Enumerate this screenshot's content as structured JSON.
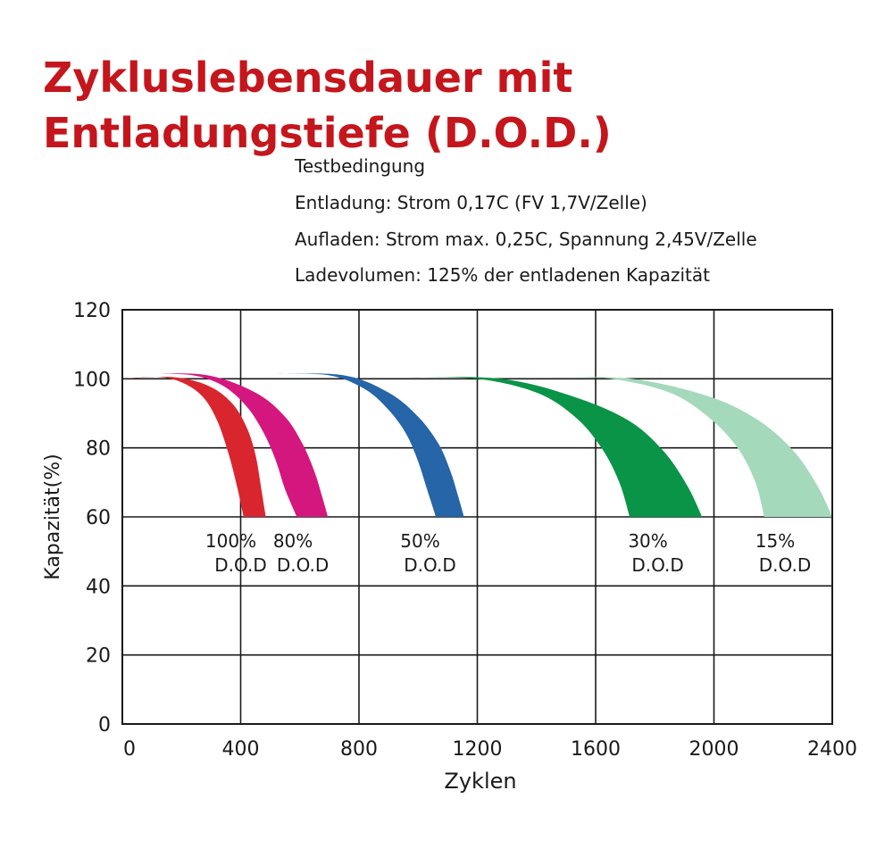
{
  "title": "Zykluslebensdauer mit Entladungstiefe (D.O.D.)",
  "conditions": [
    "Testbedingung",
    "Entladung: Strom 0,17C (FV 1,7V/Zelle)",
    "Aufladen: Strom max. 0,25C, Spannung 2,45V/Zelle",
    "Ladevolumen: 125% der entladenen Kapazität"
  ],
  "chart_data": {
    "type": "area",
    "xlabel": "Zyklen",
    "ylabel": "Kapazität(%)",
    "xlim": [
      0,
      2400
    ],
    "ylim": [
      0,
      120
    ],
    "xticks": [
      0,
      400,
      800,
      1200,
      1600,
      2000,
      2400
    ],
    "yticks": [
      0,
      20,
      40,
      60,
      80,
      100,
      120
    ],
    "grid": true,
    "series": [
      {
        "label_line1": "100%",
        "label_line2": "D.O.D",
        "label_x": 400,
        "label_y": 54,
        "color": "#d9262e",
        "lower": {
          "x": [
            0,
            120,
            200,
            270,
            320,
            360,
            390,
            410
          ],
          "y": [
            100,
            100.5,
            99,
            95,
            88,
            78,
            68,
            60
          ]
        },
        "upper": {
          "x": [
            0,
            170,
            290,
            370,
            420,
            450,
            470,
            485
          ],
          "y": [
            100,
            100.5,
            98,
            93,
            86,
            78,
            68,
            60
          ]
        }
      },
      {
        "label_line1": "80%",
        "label_line2": "D.O.D",
        "label_x": 610,
        "label_y": 54,
        "color": "#d4177f",
        "lower": {
          "x": [
            110,
            240,
            340,
            420,
            480,
            520,
            550,
            590
          ],
          "y": [
            101.5,
            101,
            98,
            92,
            84,
            76,
            68,
            60
          ]
        },
        "upper": {
          "x": [
            110,
            290,
            450,
            550,
            610,
            650,
            675,
            695
          ],
          "y": [
            101.5,
            101,
            96,
            89,
            81,
            73,
            66,
            60
          ]
        }
      },
      {
        "label_line1": "50%",
        "label_line2": "D.O.D",
        "label_x": 1040,
        "label_y": 54,
        "color": "#2565a8",
        "lower": {
          "x": [
            520,
            700,
            820,
            900,
            960,
            1000,
            1030,
            1060
          ],
          "y": [
            101.5,
            101,
            97,
            91,
            84,
            76,
            68,
            60
          ]
        },
        "upper": {
          "x": [
            520,
            750,
            900,
            1000,
            1070,
            1110,
            1135,
            1155
          ],
          "y": [
            101.5,
            101,
            96,
            89,
            81,
            73,
            66,
            60
          ]
        }
      },
      {
        "label_line1": "30%",
        "label_line2": "D.O.D",
        "label_x": 1810,
        "label_y": 54,
        "color": "#0a9447",
        "lower": {
          "x": [
            970,
            1200,
            1400,
            1530,
            1620,
            1680,
            1715
          ],
          "y": [
            100.5,
            100,
            96,
            89,
            80,
            70,
            60
          ]
        },
        "upper": {
          "x": [
            970,
            1280,
            1520,
            1710,
            1830,
            1910,
            1960
          ],
          "y": [
            100.5,
            100,
            95,
            88,
            79,
            69,
            60
          ]
        }
      },
      {
        "label_line1": "15%",
        "label_line2": "D.O.D",
        "label_x": 2240,
        "label_y": 54,
        "color": "#a4d9bc",
        "lower": {
          "x": [
            1440,
            1650,
            1850,
            1980,
            2080,
            2140,
            2170
          ],
          "y": [
            100.5,
            100,
            96,
            89,
            80,
            70,
            60
          ]
        },
        "upper": {
          "x": [
            1440,
            1720,
            1980,
            2150,
            2270,
            2350,
            2400
          ],
          "y": [
            100.5,
            100,
            95,
            88,
            79,
            69,
            60
          ]
        }
      }
    ]
  }
}
